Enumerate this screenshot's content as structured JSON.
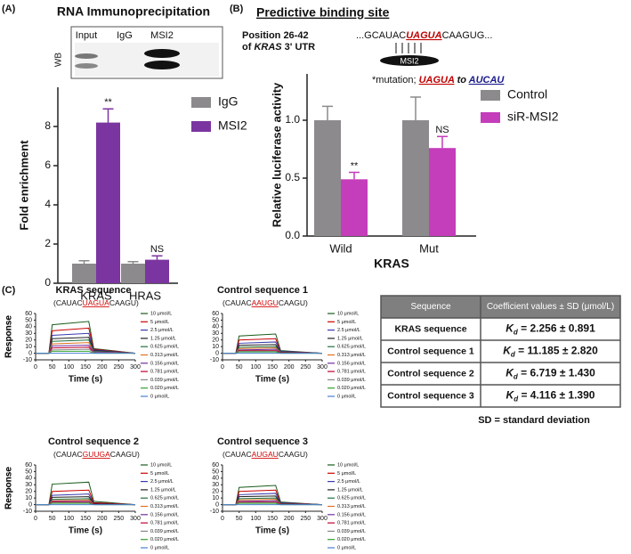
{
  "panel_a": {
    "label": "(A)",
    "wb_lanes": [
      "Input",
      "IgG",
      "MSI2"
    ],
    "wb_label": "WB"
  },
  "panel_b": {
    "label": "(B)",
    "title": "Predictive binding site",
    "position_line1": "Position 26-42",
    "position_line2": [
      "of ",
      "KRAS",
      " 3' UTR"
    ],
    "sequence": [
      "...GCAUAC",
      "UAGUA",
      "CAAGUG..."
    ],
    "protein": "MSI2",
    "mutation": [
      "*mutation; ",
      "UAGUA",
      " to ",
      "AUCAU"
    ]
  },
  "panel_c": {
    "label": "(C)"
  },
  "chart_data": [
    {
      "type": "bar",
      "title": "RNA Immunoprecipitation",
      "y_label": "Fold enrichment",
      "categories": [
        "KRAS",
        "HRAS"
      ],
      "ylim": [
        0,
        10
      ],
      "yticks": [
        0,
        2,
        4,
        6,
        8
      ],
      "series": [
        {
          "name": "IgG",
          "color": "#8c8a8c",
          "values": [
            1.0,
            1.0
          ],
          "errors": [
            0.15,
            0.1
          ]
        },
        {
          "name": "MSI2",
          "color": "#7b35a0",
          "values": [
            8.2,
            1.2
          ],
          "errors": [
            0.7,
            0.2
          ],
          "significance": [
            "**",
            "NS"
          ]
        }
      ]
    },
    {
      "type": "bar",
      "y_label": "Relative luciferase activity",
      "x_label": "KRAS",
      "categories": [
        "Wild",
        "Mut"
      ],
      "ylim": [
        0,
        1.4
      ],
      "yticks": [
        {
          "value": 0,
          "label": "0.0"
        },
        {
          "value": 0.5,
          "label": "0.5"
        },
        {
          "value": 1,
          "label": "1.0"
        }
      ],
      "series": [
        {
          "name": "Control",
          "color": "#8c8a8c",
          "values": [
            1.0,
            1.0
          ],
          "errors": [
            0.12,
            0.2
          ]
        },
        {
          "name": "siR-MSI2",
          "color": "#c43dba",
          "values": [
            0.49,
            0.76
          ],
          "errors": [
            0.06,
            0.1
          ],
          "significance": [
            "**",
            "NS"
          ]
        }
      ]
    },
    {
      "type": "line",
      "title": "KRAS sequence",
      "subtitle": [
        "(CAUAC",
        "UAGUA",
        "CAAGU)"
      ],
      "x_label": "Time (s)",
      "y_label": "Response",
      "xlim": [
        0,
        300
      ],
      "xticks": [
        0,
        50,
        100,
        150,
        200,
        250,
        300
      ],
      "ylim": [
        -10,
        60
      ],
      "yticks": [
        -10,
        0,
        10,
        20,
        30,
        40,
        50,
        60
      ],
      "x": [
        0,
        40,
        50,
        160,
        175,
        300
      ],
      "series": [
        {
          "name": "10 μmol/L",
          "color": "#1a5c1a",
          "values": [
            0,
            0,
            43,
            48,
            7,
            0
          ]
        },
        {
          "name": "5 μmol/L",
          "color": "#cc0000",
          "values": [
            0,
            0,
            34,
            38,
            6,
            0
          ]
        },
        {
          "name": "2.5 μmol/L",
          "color": "#3a3ab0",
          "values": [
            0,
            0,
            27,
            30,
            5,
            0
          ]
        },
        {
          "name": "1.25 μmol/L",
          "color": "#222222",
          "values": [
            0,
            0,
            22,
            24,
            4,
            0
          ]
        },
        {
          "name": "0.625 μmol/L",
          "color": "#1f6f3f",
          "values": [
            0,
            0,
            18,
            20,
            3,
            0
          ]
        },
        {
          "name": "0.313 μmol/L",
          "color": "#e07020",
          "values": [
            0,
            0,
            14,
            16,
            2,
            0
          ]
        },
        {
          "name": "0.156 μmol/L",
          "color": "#7030a0",
          "values": [
            0,
            0,
            11,
            12,
            2,
            0
          ]
        },
        {
          "name": "0.781 μmol/L",
          "color": "#c00030",
          "values": [
            0,
            0,
            8,
            9,
            1,
            0
          ]
        },
        {
          "name": "0.039 μmol/L",
          "color": "#888888",
          "values": [
            0,
            0,
            5,
            6,
            1,
            0
          ]
        },
        {
          "name": "0.020 μmol/L",
          "color": "#30a030",
          "values": [
            0,
            0,
            3,
            3,
            0,
            0
          ]
        },
        {
          "name": "0 μmol/L",
          "color": "#4a7fd0",
          "values": [
            0,
            0,
            0,
            0,
            0,
            0
          ]
        }
      ]
    },
    {
      "type": "line",
      "title": "Control sequence 1",
      "subtitle": [
        "(CAUAC",
        "AAUGU",
        "CAAGU)"
      ],
      "x_label": "Time (s)",
      "y_label": "Response",
      "xlim": [
        0,
        300
      ],
      "xticks": [
        0,
        50,
        100,
        150,
        200,
        250,
        300
      ],
      "ylim": [
        -10,
        60
      ],
      "yticks": [
        -10,
        0,
        10,
        20,
        30,
        40,
        50,
        60
      ],
      "x": [
        0,
        40,
        50,
        160,
        175,
        300
      ],
      "series": [
        {
          "name": "10 μmol/L",
          "color": "#1a5c1a",
          "values": [
            0,
            0,
            26,
            29,
            4,
            0
          ]
        },
        {
          "name": "5 μmol/L",
          "color": "#cc0000",
          "values": [
            0,
            0,
            20,
            22,
            3,
            0
          ]
        },
        {
          "name": "2.5 μmol/L",
          "color": "#3a3ab0",
          "values": [
            0,
            0,
            15,
            17,
            3,
            0
          ]
        },
        {
          "name": "1.25 μmol/L",
          "color": "#222222",
          "values": [
            0,
            0,
            12,
            13,
            2,
            0
          ]
        },
        {
          "name": "0.625 μmol/L",
          "color": "#1f6f3f",
          "values": [
            0,
            0,
            9,
            10,
            2,
            0
          ]
        },
        {
          "name": "0.313 μmol/L",
          "color": "#e07020",
          "values": [
            0,
            0,
            7,
            8,
            1,
            0
          ]
        },
        {
          "name": "0.156 μmol/L",
          "color": "#7030a0",
          "values": [
            0,
            0,
            5,
            6,
            1,
            0
          ]
        },
        {
          "name": "0.781 μmol/L",
          "color": "#c00030",
          "values": [
            0,
            0,
            4,
            4,
            1,
            0
          ]
        },
        {
          "name": "0.039 μmol/L",
          "color": "#888888",
          "values": [
            0,
            0,
            3,
            3,
            0,
            0
          ]
        },
        {
          "name": "0.020 μmol/L",
          "color": "#30a030",
          "values": [
            0,
            0,
            2,
            2,
            0,
            0
          ]
        },
        {
          "name": "0 μmol/L",
          "color": "#4a7fd0",
          "values": [
            0,
            0,
            0,
            0,
            0,
            0
          ]
        }
      ]
    },
    {
      "type": "line",
      "title": "Control sequence 2",
      "subtitle": [
        "(CAUAC",
        "GUUGA",
        "CAAGU)"
      ],
      "x_label": "Time (s)",
      "y_label": "Response",
      "xlim": [
        0,
        300
      ],
      "xticks": [
        0,
        50,
        100,
        150,
        200,
        250,
        300
      ],
      "ylim": [
        -10,
        60
      ],
      "yticks": [
        -10,
        0,
        10,
        20,
        30,
        40,
        50,
        60
      ],
      "x": [
        0,
        40,
        50,
        160,
        175,
        300
      ],
      "series": [
        {
          "name": "10 μmol/L",
          "color": "#1a5c1a",
          "values": [
            0,
            0,
            31,
            34,
            5,
            0
          ]
        },
        {
          "name": "5 μmol/L",
          "color": "#cc0000",
          "values": [
            0,
            0,
            20,
            22,
            3,
            0
          ]
        },
        {
          "name": "2.5 μmol/L",
          "color": "#3a3ab0",
          "values": [
            0,
            0,
            14,
            16,
            2,
            0
          ]
        },
        {
          "name": "1.25 μmol/L",
          "color": "#222222",
          "values": [
            0,
            0,
            11,
            12,
            2,
            0
          ]
        },
        {
          "name": "0.625 μmol/L",
          "color": "#1f6f3f",
          "values": [
            0,
            0,
            8,
            9,
            1,
            0
          ]
        },
        {
          "name": "0.313 μmol/L",
          "color": "#e07020",
          "values": [
            0,
            0,
            6,
            7,
            1,
            0
          ]
        },
        {
          "name": "0.156 μmol/L",
          "color": "#7030a0",
          "values": [
            0,
            0,
            5,
            5,
            1,
            0
          ]
        },
        {
          "name": "0.781 μmol/L",
          "color": "#c00030",
          "values": [
            0,
            0,
            4,
            4,
            1,
            0
          ]
        },
        {
          "name": "0.039 μmol/L",
          "color": "#888888",
          "values": [
            0,
            0,
            3,
            3,
            0,
            0
          ]
        },
        {
          "name": "0.020 μmol/L",
          "color": "#30a030",
          "values": [
            0,
            0,
            2,
            2,
            0,
            0
          ]
        },
        {
          "name": "0 μmol/L",
          "color": "#4a7fd0",
          "values": [
            0,
            0,
            0,
            0,
            0,
            0
          ]
        }
      ]
    },
    {
      "type": "line",
      "title": "Control sequence 3",
      "subtitle": [
        "(CAUAC",
        "AUGAU",
        "CAAGU)"
      ],
      "x_label": "Time (s)",
      "y_label": "Response",
      "xlim": [
        0,
        300
      ],
      "xticks": [
        0,
        50,
        100,
        150,
        200,
        250,
        300
      ],
      "ylim": [
        -10,
        60
      ],
      "yticks": [
        -10,
        0,
        10,
        20,
        30,
        40,
        50,
        60
      ],
      "x": [
        0,
        40,
        50,
        160,
        175,
        300
      ],
      "series": [
        {
          "name": "10 μmol/L",
          "color": "#1a5c1a",
          "values": [
            0,
            0,
            26,
            29,
            4,
            0
          ]
        },
        {
          "name": "5 μmol/L",
          "color": "#cc0000",
          "values": [
            0,
            0,
            20,
            22,
            3,
            0
          ]
        },
        {
          "name": "2.5 μmol/L",
          "color": "#3a3ab0",
          "values": [
            0,
            0,
            15,
            17,
            3,
            0
          ]
        },
        {
          "name": "1.25 μmol/L",
          "color": "#222222",
          "values": [
            0,
            0,
            12,
            13,
            2,
            0
          ]
        },
        {
          "name": "0.625 μmol/L",
          "color": "#1f6f3f",
          "values": [
            0,
            0,
            9,
            10,
            2,
            0
          ]
        },
        {
          "name": "0.313 μmol/L",
          "color": "#e07020",
          "values": [
            0,
            0,
            7,
            8,
            1,
            0
          ]
        },
        {
          "name": "0.156 μmol/L",
          "color": "#7030a0",
          "values": [
            0,
            0,
            5,
            6,
            1,
            0
          ]
        },
        {
          "name": "0.781 μmol/L",
          "color": "#c00030",
          "values": [
            0,
            0,
            4,
            4,
            1,
            0
          ]
        },
        {
          "name": "0.039 μmol/L",
          "color": "#888888",
          "values": [
            0,
            0,
            3,
            3,
            0,
            0
          ]
        },
        {
          "name": "0.020 μmol/L",
          "color": "#30a030",
          "values": [
            0,
            0,
            2,
            2,
            0,
            0
          ]
        },
        {
          "name": "0 μmol/L",
          "color": "#4a7fd0",
          "values": [
            0,
            0,
            0,
            0,
            0,
            0
          ]
        }
      ]
    }
  ],
  "table": {
    "header": [
      "Sequence",
      "Coefficient values ± SD (μmol/L)"
    ],
    "rows": [
      {
        "sequence": "KRAS sequence",
        "kd_symbol": "K",
        "kd_subscript": "d",
        "value": " = 2.256 ± 0.891"
      },
      {
        "sequence": "Control sequence 1",
        "kd_symbol": "K",
        "kd_subscript": "d",
        "value": " = 11.185 ± 2.820"
      },
      {
        "sequence": "Control sequence 2",
        "kd_symbol": "K",
        "kd_subscript": "d",
        "value": " = 6.719 ± 1.430"
      },
      {
        "sequence": "Control sequence 3",
        "kd_symbol": "K",
        "kd_subscript": "d",
        "value": " = 4.116 ± 1.390"
      }
    ],
    "footnote": "SD = standard deviation"
  }
}
